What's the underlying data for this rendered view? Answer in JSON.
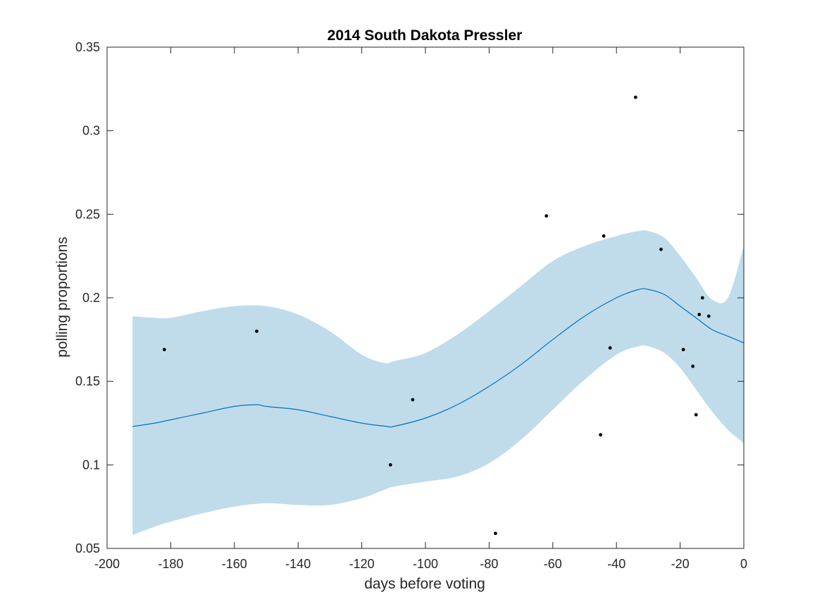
{
  "chart_data": {
    "type": "line",
    "title": "2014 South Dakota Pressler",
    "xlabel": "days before voting",
    "ylabel": "polling proportions",
    "xlim": [
      -200,
      0
    ],
    "ylim": [
      0.05,
      0.35
    ],
    "xticks": [
      -200,
      -180,
      -160,
      -140,
      -120,
      -100,
      -80,
      -60,
      -40,
      -20,
      0
    ],
    "xtick_labels": [
      "-200",
      "-180",
      "-160",
      "-140",
      "-120",
      "-100",
      "-80",
      "-60",
      "-40",
      "-20",
      "0"
    ],
    "yticks": [
      0.05,
      0.1,
      0.15,
      0.2,
      0.25,
      0.3,
      0.35
    ],
    "ytick_labels": [
      "0.05",
      "0.1",
      "0.15",
      "0.2",
      "0.25",
      "0.3",
      "0.35"
    ],
    "grid": false,
    "legend": "none",
    "colors": {
      "band": "#c0dceb",
      "line": "#0072bd",
      "points": "#000000"
    },
    "series": [
      {
        "kind": "confidence-band",
        "x": [
          -192,
          -185,
          -180,
          -170,
          -160,
          -150,
          -140,
          -130,
          -120,
          -113,
          -110,
          -100,
          -90,
          -80,
          -70,
          -60,
          -50,
          -40,
          -33,
          -30,
          -25,
          -20,
          -15,
          -10,
          -5,
          0
        ],
        "upper": [
          0.189,
          0.188,
          0.188,
          0.192,
          0.195,
          0.195,
          0.19,
          0.18,
          0.166,
          0.161,
          0.162,
          0.167,
          0.178,
          0.192,
          0.207,
          0.222,
          0.231,
          0.237,
          0.24,
          0.24,
          0.236,
          0.225,
          0.212,
          0.199,
          0.2,
          0.231
        ],
        "lower": [
          0.058,
          0.063,
          0.066,
          0.071,
          0.075,
          0.077,
          0.076,
          0.076,
          0.08,
          0.085,
          0.087,
          0.09,
          0.093,
          0.101,
          0.115,
          0.133,
          0.151,
          0.166,
          0.171,
          0.171,
          0.167,
          0.158,
          0.145,
          0.132,
          0.121,
          0.113
        ]
      },
      {
        "kind": "fit-line",
        "x": [
          -192,
          -185,
          -180,
          -170,
          -160,
          -153,
          -150,
          -140,
          -130,
          -120,
          -112,
          -110,
          -100,
          -90,
          -80,
          -70,
          -60,
          -50,
          -40,
          -33,
          -30,
          -25,
          -20,
          -15,
          -10,
          -5,
          0
        ],
        "values": [
          0.123,
          0.125,
          0.127,
          0.131,
          0.135,
          0.136,
          0.135,
          0.133,
          0.129,
          0.125,
          0.123,
          0.123,
          0.128,
          0.136,
          0.147,
          0.16,
          0.175,
          0.189,
          0.2,
          0.205,
          0.205,
          0.202,
          0.195,
          0.188,
          0.181,
          0.177,
          0.173
        ]
      },
      {
        "kind": "poll-points",
        "x": [
          -182,
          -153,
          -111,
          -104,
          -78,
          -62,
          -45,
          -44,
          -42,
          -34,
          -26,
          -19,
          -16,
          -15,
          -14,
          -13,
          -11
        ],
        "y": [
          0.169,
          0.18,
          0.1,
          0.139,
          0.059,
          0.249,
          0.118,
          0.237,
          0.17,
          0.32,
          0.229,
          0.169,
          0.159,
          0.13,
          0.19,
          0.2,
          0.189
        ]
      }
    ]
  }
}
